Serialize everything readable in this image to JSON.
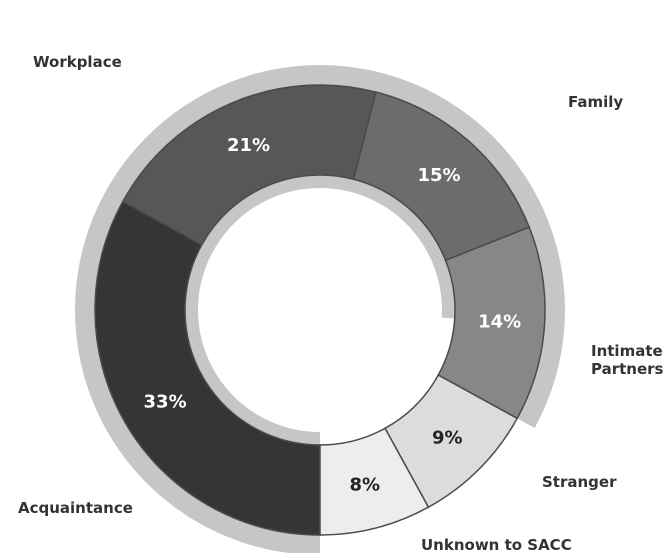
{
  "chart_data": {
    "type": "pie",
    "style": "donut",
    "title": "",
    "categories": [
      "Acquaintance",
      "Workplace",
      "Family",
      "Intimate Partners",
      "Stranger",
      "Unknown to SACC"
    ],
    "values": [
      33,
      21,
      15,
      14,
      9,
      8
    ],
    "value_labels": [
      "33%",
      "21%",
      "15%",
      "14%",
      "9%",
      "8%"
    ],
    "colors": [
      "#353535",
      "#575757",
      "#6c6c6c",
      "#878787",
      "#dcdcdc",
      "#ededed"
    ],
    "pct_text_colors": [
      "#ffffff",
      "#ffffff",
      "#ffffff",
      "#ffffff",
      "#222222",
      "#222222"
    ],
    "category_lines": [
      [
        "Acquaintance"
      ],
      [
        "Workplace"
      ],
      [
        "Family"
      ],
      [
        "Intimate",
        "Partners"
      ],
      [
        "Stranger"
      ],
      [
        "Unknown to SACC"
      ]
    ],
    "legend": "none"
  }
}
